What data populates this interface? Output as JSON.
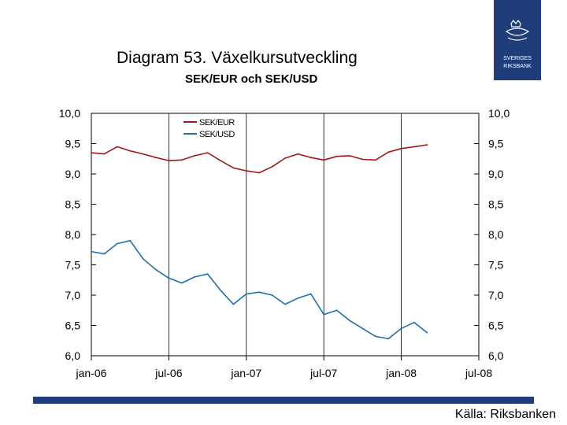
{
  "slide": {
    "title": "Diagram 53. Växelkursutveckling",
    "subtitle": "SEK/EUR och SEK/USD",
    "source": "Källa: Riksbanken",
    "logo_text_1": "SVERIGES",
    "logo_text_2": "RIKSBANK"
  },
  "colors": {
    "eur": "#a3171b",
    "usd": "#1f6fa8",
    "brand": "#1f3d7a"
  },
  "chart_data": {
    "type": "line",
    "title": "SEK/EUR och SEK/USD",
    "ylim": [
      6.0,
      10.0
    ],
    "yticks": [
      "10,0",
      "9,5",
      "9,0",
      "8,5",
      "8,0",
      "7,5",
      "7,0",
      "6,5",
      "6,0"
    ],
    "xticks": [
      "jan-06",
      "jul-06",
      "jan-07",
      "jul-07",
      "jan-08",
      "jul-08"
    ],
    "xlim": [
      0,
      30
    ],
    "legend_position": "top-left",
    "series": [
      {
        "name": "SEK/EUR",
        "x": [
          0,
          1,
          2,
          3,
          4,
          5,
          6,
          7,
          8,
          9,
          10,
          11,
          12,
          13,
          14,
          15,
          16,
          17,
          18,
          19,
          20,
          21,
          22,
          23,
          24,
          25,
          26
        ],
        "values": [
          9.35,
          9.33,
          9.45,
          9.38,
          9.33,
          9.27,
          9.22,
          9.23,
          9.3,
          9.35,
          9.22,
          9.1,
          9.05,
          9.02,
          9.12,
          9.26,
          9.33,
          9.27,
          9.23,
          9.29,
          9.3,
          9.24,
          9.23,
          9.36,
          9.42,
          9.45,
          9.48
        ]
      },
      {
        "name": "SEK/USD",
        "x": [
          0,
          1,
          2,
          3,
          4,
          5,
          6,
          7,
          8,
          9,
          10,
          11,
          12,
          13,
          14,
          15,
          16,
          17,
          18,
          19,
          20,
          21,
          22,
          23,
          24,
          25,
          26
        ],
        "values": [
          7.72,
          7.68,
          7.85,
          7.9,
          7.6,
          7.42,
          7.28,
          7.2,
          7.3,
          7.35,
          7.08,
          6.85,
          7.02,
          7.05,
          7.0,
          6.85,
          6.95,
          7.02,
          6.68,
          6.75,
          6.58,
          6.45,
          6.32,
          6.28,
          6.45,
          6.55,
          6.38
        ]
      }
    ]
  }
}
